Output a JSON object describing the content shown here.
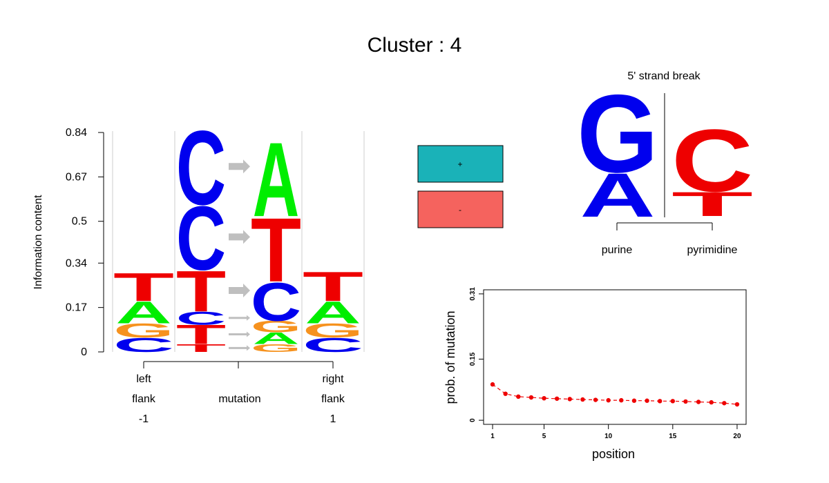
{
  "title": "Cluster : 4",
  "logo": {
    "ylabel": "Information content",
    "yticks": [
      "0",
      "0.17",
      "0.34",
      "0.5",
      "0.67",
      "0.84"
    ],
    "ytick_values": [
      0,
      0.17,
      0.34,
      0.5,
      0.67,
      0.84
    ],
    "ymax": 0.84,
    "groups": [
      {
        "line1": "left",
        "line2": "flank",
        "line3": "-1"
      },
      {
        "line1": "",
        "line2": "mutation",
        "line3": ""
      },
      {
        "line1": "right",
        "line2": "flank",
        "line3": "1"
      }
    ],
    "left_flank": [
      {
        "letter": "C",
        "color": "#0000ee",
        "height": 0.055
      },
      {
        "letter": "G",
        "color": "#f6921e",
        "height": 0.055
      },
      {
        "letter": "A",
        "color": "#00ee00",
        "height": 0.085
      },
      {
        "letter": "T",
        "color": "#ee0000",
        "height": 0.11
      }
    ],
    "right_flank": [
      {
        "letter": "C",
        "color": "#0000ee",
        "height": 0.055
      },
      {
        "letter": "G",
        "color": "#f6921e",
        "height": 0.055
      },
      {
        "letter": "A",
        "color": "#00ee00",
        "height": 0.085
      },
      {
        "letter": "T",
        "color": "#ee0000",
        "height": 0.115
      }
    ],
    "mutation_from": [
      {
        "letter": "T",
        "color": "#ee0000",
        "height": 0.03
      },
      {
        "letter": "T",
        "color": "#ee0000",
        "height": 0.075
      },
      {
        "letter": "C",
        "color": "#0000ee",
        "height": 0.05
      },
      {
        "letter": "T",
        "color": "#ee0000",
        "height": 0.16
      },
      {
        "letter": "C",
        "color": "#0000ee",
        "height": 0.25
      },
      {
        "letter": "C",
        "color": "#0000ee",
        "height": 0.29
      }
    ],
    "mutation_to": [
      {
        "letter": "G",
        "color": "#f6921e",
        "height": 0.03
      },
      {
        "letter": "A",
        "color": "#00ee00",
        "height": 0.045
      },
      {
        "letter": "G",
        "color": "#f6921e",
        "height": 0.045
      },
      {
        "letter": "C",
        "color": "#0000ee",
        "height": 0.15
      },
      {
        "letter": "T",
        "color": "#ee0000",
        "height": 0.25
      },
      {
        "letter": "A",
        "color": "#00ee00",
        "height": 0.29
      }
    ]
  },
  "strand_legend": [
    {
      "label": "+",
      "color": "#1ab2b8"
    },
    {
      "label": "-",
      "color": "#f5635e"
    }
  ],
  "strand_break": {
    "title": "5' strand break",
    "left_label": "purine",
    "right_label": "pyrimidine",
    "left_letters": [
      {
        "letter": "A",
        "color": "#0000ee",
        "height": 0.36
      },
      {
        "letter": "G",
        "color": "#0000ee",
        "height": 0.64
      }
    ],
    "right_letters": [
      {
        "letter": "T",
        "color": "#ee0000",
        "height": 0.28
      },
      {
        "letter": "C",
        "color": "#ee0000",
        "height": 0.72
      }
    ]
  },
  "chart_data": {
    "type": "line",
    "xlabel": "position",
    "ylabel": "prob. of mutation",
    "xticks": [
      1,
      5,
      10,
      15,
      20
    ],
    "yticks": [
      0,
      0.15,
      0.31
    ],
    "xlim": [
      0.3,
      20.7
    ],
    "ylim": [
      -0.01,
      0.32
    ],
    "color": "#ee0000",
    "x": [
      1,
      2,
      3,
      4,
      5,
      6,
      7,
      8,
      9,
      10,
      11,
      12,
      13,
      14,
      15,
      16,
      17,
      18,
      19,
      20
    ],
    "values": [
      0.088,
      0.065,
      0.058,
      0.056,
      0.054,
      0.053,
      0.052,
      0.051,
      0.05,
      0.049,
      0.049,
      0.048,
      0.048,
      0.047,
      0.047,
      0.046,
      0.045,
      0.044,
      0.042,
      0.039
    ]
  }
}
